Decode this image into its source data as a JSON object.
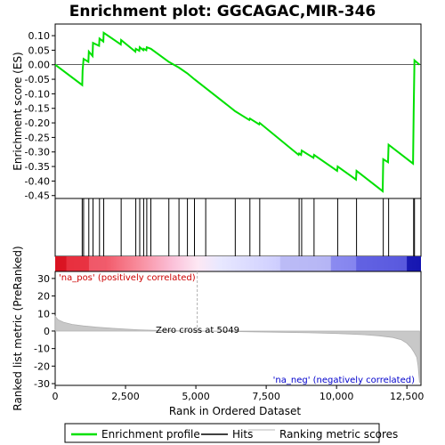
{
  "chart_data": {
    "type": "line",
    "title": "Enrichment plot: GGCAGAC,MIR-346",
    "xlabel": "Rank in Ordered Dataset",
    "ylabel_top": "Enrichment score (ES)",
    "ylabel_bottom": "Ranked list metric (PreRanked)",
    "xlim": [
      0,
      13000
    ],
    "x_ticks": [
      0,
      2500,
      5000,
      7500,
      10000,
      12500
    ],
    "x_tick_labels": [
      "0",
      "2,500",
      "5,000",
      "7,500",
      "10,000",
      "12,500"
    ],
    "es_ylim": [
      -0.46,
      0.14
    ],
    "es_ticks": [
      0.1,
      0.05,
      0.0,
      -0.05,
      -0.1,
      -0.15,
      -0.2,
      -0.25,
      -0.3,
      -0.35,
      -0.4,
      -0.45
    ],
    "es_tick_labels": [
      "0.10",
      "0.05",
      "0.00",
      "-0.05",
      "-0.10",
      "-0.15",
      "-0.20",
      "-0.25",
      "-0.30",
      "-0.35",
      "-0.40",
      "-0.45"
    ],
    "metric_ylim": [
      -31,
      34
    ],
    "metric_ticks": [
      30,
      20,
      10,
      0,
      -10,
      -20,
      -30
    ],
    "metric_tick_labels": [
      "30",
      "20",
      "10",
      "0",
      "-10",
      "-20",
      "-30"
    ],
    "es_points": [
      [
        0,
        0.0
      ],
      [
        960,
        -0.07
      ],
      [
        975,
        -0.02
      ],
      [
        1010,
        0.02
      ],
      [
        1180,
        0.01
      ],
      [
        1195,
        0.045
      ],
      [
        1330,
        0.03
      ],
      [
        1345,
        0.075
      ],
      [
        1560,
        0.065
      ],
      [
        1575,
        0.09
      ],
      [
        1710,
        0.08
      ],
      [
        1725,
        0.11
      ],
      [
        2330,
        0.07
      ],
      [
        2345,
        0.085
      ],
      [
        2850,
        0.045
      ],
      [
        2865,
        0.055
      ],
      [
        2990,
        0.048
      ],
      [
        3005,
        0.06
      ],
      [
        3130,
        0.05
      ],
      [
        3145,
        0.055
      ],
      [
        3240,
        0.05
      ],
      [
        3255,
        0.06
      ],
      [
        3400,
        0.055
      ],
      [
        4040,
        0.01
      ],
      [
        4400,
        -0.01
      ],
      [
        4700,
        -0.03
      ],
      [
        4950,
        -0.05
      ],
      [
        5350,
        -0.08
      ],
      [
        6400,
        -0.16
      ],
      [
        6900,
        -0.19
      ],
      [
        6920,
        -0.185
      ],
      [
        7250,
        -0.205
      ],
      [
        7270,
        -0.2
      ],
      [
        8650,
        -0.31
      ],
      [
        8670,
        -0.305
      ],
      [
        8740,
        -0.31
      ],
      [
        8760,
        -0.295
      ],
      [
        9180,
        -0.32
      ],
      [
        9200,
        -0.31
      ],
      [
        10020,
        -0.365
      ],
      [
        10040,
        -0.35
      ],
      [
        10690,
        -0.395
      ],
      [
        10710,
        -0.365
      ],
      [
        11640,
        -0.435
      ],
      [
        11660,
        -0.325
      ],
      [
        11830,
        -0.335
      ],
      [
        11850,
        -0.275
      ],
      [
        12720,
        -0.34
      ],
      [
        12740,
        -0.165
      ],
      [
        12770,
        0.015
      ],
      [
        12950,
        0.0
      ]
    ],
    "hit_ranks": [
      960,
      1010,
      1195,
      1345,
      1575,
      1725,
      2345,
      2865,
      3005,
      3145,
      3255,
      3400,
      4040,
      4400,
      4700,
      4950,
      5350,
      6400,
      6920,
      7270,
      8670,
      8760,
      9200,
      10040,
      10710,
      11660,
      11850,
      12740,
      12770
    ],
    "metric_curve": [
      [
        0,
        8.5
      ],
      [
        100,
        6.5
      ],
      [
        300,
        5.0
      ],
      [
        600,
        3.8
      ],
      [
        1000,
        2.9
      ],
      [
        1500,
        2.2
      ],
      [
        2000,
        1.6
      ],
      [
        2500,
        1.1
      ],
      [
        3000,
        0.7
      ],
      [
        3500,
        0.45
      ],
      [
        4000,
        0.25
      ],
      [
        4500,
        0.1
      ],
      [
        5049,
        0.0
      ],
      [
        6000,
        -0.2
      ],
      [
        7000,
        -0.45
      ],
      [
        8000,
        -0.7
      ],
      [
        9000,
        -1.0
      ],
      [
        10000,
        -1.4
      ],
      [
        10500,
        -1.7
      ],
      [
        11000,
        -2.1
      ],
      [
        11500,
        -2.7
      ],
      [
        12000,
        -3.7
      ],
      [
        12300,
        -5.0
      ],
      [
        12500,
        -7.0
      ],
      [
        12650,
        -9.5
      ],
      [
        12750,
        -12.0
      ],
      [
        12850,
        -15.0
      ],
      [
        12900,
        -20.0
      ],
      [
        12950,
        -29.5
      ]
    ],
    "zero_cross_rank": 5049,
    "annotations": {
      "pos": "'na_pos' (positively correlated)",
      "neg": "'na_neg' (negatively correlated)",
      "zero": "Zero cross at 5049"
    },
    "legend": [
      "Enrichment profile",
      "Hits",
      "Ranking metric scores"
    ],
    "colors": {
      "es_line": "#00e000",
      "hits": "#000000",
      "metric_fill": "#c8c8c8",
      "metric_line": "#b0b0b0",
      "pos_text": "#cc0000",
      "neg_text": "#0000cc",
      "zero_line": "#b0b0b0"
    }
  }
}
